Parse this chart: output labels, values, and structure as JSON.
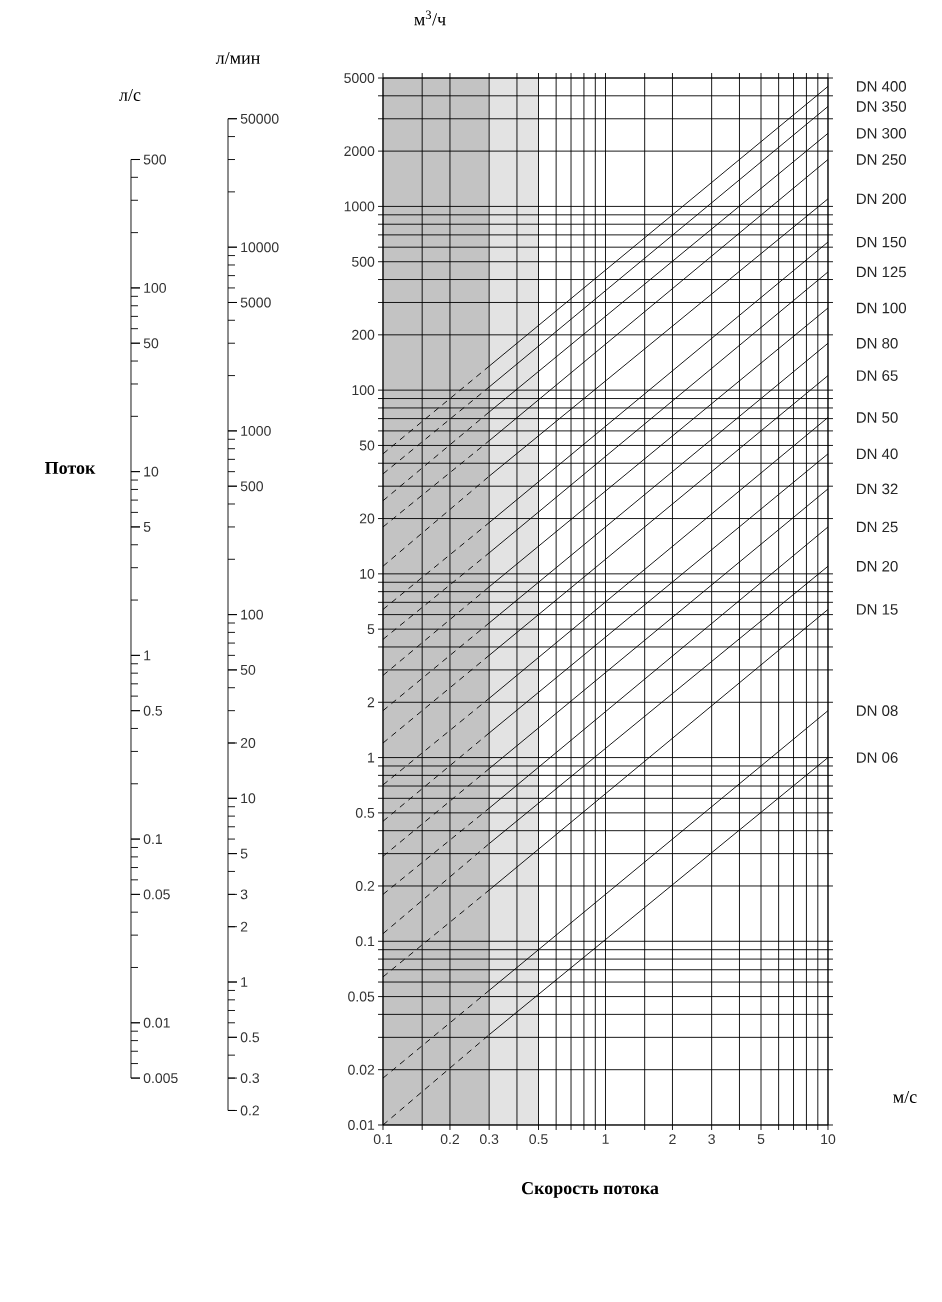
{
  "chart_data": [
    {
      "type": "other",
      "ylabel": "л/с",
      "annotations": [
        "0.005",
        "0.01",
        "0.05",
        "0.1",
        "0.5",
        "1",
        "5",
        "10",
        "50",
        "100",
        "500"
      ]
    },
    {
      "type": "other",
      "ylabel": "л/мин",
      "annotations": [
        "0.2",
        "0.3",
        "0.5",
        "1",
        "2",
        "3",
        "5",
        "10",
        "20",
        "50",
        "100",
        "500",
        "1000",
        "5000",
        "10000",
        "50000"
      ]
    },
    {
      "type": "line",
      "xlabel": "Скорость потока",
      "ylabel": "м$^{3}$/ч",
      "annotations": [
        "Поток",
        "м/с"
      ],
      "log": "xy",
      "grid": true,
      "legend": "right",
      "marker": "none",
      "xlim": [
        0.1,
        10
      ],
      "ylim": [
        0.01,
        5000
      ],
      "xticks": [
        0.1,
        {
          "value": 0.15,
          "label": null
        },
        0.2,
        0.3,
        {
          "value": 0.4,
          "label": null
        },
        0.5,
        {
          "value": 0.6,
          "label": null
        },
        {
          "value": 0.7,
          "label": null
        },
        {
          "value": 0.8,
          "label": null
        },
        {
          "value": 0.9,
          "label": null
        },
        1,
        {
          "value": 1.5,
          "label": null
        },
        2,
        3,
        {
          "value": 4,
          "label": null
        },
        5,
        {
          "value": 6,
          "label": null
        },
        {
          "value": 7,
          "label": null
        },
        {
          "value": 8,
          "label": null
        },
        {
          "value": 9,
          "label": null
        },
        10
      ],
      "yticks": [
        0.01,
        0.02,
        {
          "value": 0.03,
          "label": null
        },
        {
          "value": 0.04,
          "label": null
        },
        0.05,
        {
          "value": 0.06,
          "label": null
        },
        {
          "value": 0.07,
          "label": null
        },
        {
          "value": 0.08,
          "label": null
        },
        {
          "value": 0.09,
          "label": null
        },
        0.1,
        0.2,
        {
          "value": 0.3,
          "label": null
        },
        {
          "value": 0.4,
          "label": null
        },
        0.5,
        {
          "value": 0.6,
          "label": null
        },
        {
          "value": 0.7,
          "label": null
        },
        {
          "value": 0.8,
          "label": null
        },
        {
          "value": 0.9,
          "label": null
        },
        1,
        2,
        {
          "value": 3,
          "label": null
        },
        {
          "value": 4,
          "label": null
        },
        5,
        {
          "value": 6,
          "label": null
        },
        {
          "value": 7,
          "label": null
        },
        {
          "value": 8,
          "label": null
        },
        {
          "value": 9,
          "label": null
        },
        10,
        20,
        {
          "value": 30,
          "label": null
        },
        {
          "value": 40,
          "label": null
        },
        50,
        {
          "value": 60,
          "label": null
        },
        {
          "value": 70,
          "label": null
        },
        {
          "value": 80,
          "label": null
        },
        {
          "value": 90,
          "label": null
        },
        100,
        200,
        {
          "value": 300,
          "label": null
        },
        {
          "value": 400,
          "label": null
        },
        500,
        {
          "value": 600,
          "label": null
        },
        {
          "value": 700,
          "label": null
        },
        {
          "value": 800,
          "label": null
        },
        {
          "value": 900,
          "label": null
        },
        1000,
        2000,
        {
          "value": 3000,
          "label": null
        },
        {
          "value": 4000,
          "label": null
        },
        5000
      ],
      "bands": [
        {
          "axis": "x",
          "from": 0.1,
          "to": 0.3,
          "color": "#c3c3c3"
        },
        {
          "axis": "x",
          "from": 0.3,
          "to": 0.5,
          "color": "#e3e3e3"
        }
      ],
      "series": [
        {
          "name": "DN 400",
          "color": "#000000",
          "x": [
            0.3,
            10
          ],
          "values": [
            135,
            4500
          ]
        },
        {
          "color": "#000000",
          "line_style": "dashed",
          "x": [
            0.1,
            0.3
          ],
          "values": [
            45,
            135
          ]
        },
        {
          "name": "DN 350",
          "color": "#000000",
          "x": [
            0.3,
            10
          ],
          "values": [
            104,
            3500
          ]
        },
        {
          "color": "#000000",
          "line_style": "dashed",
          "x": [
            0.1,
            0.3
          ],
          "values": [
            35,
            104
          ]
        },
        {
          "name": "DN 300",
          "color": "#000000",
          "x": [
            0.3,
            10
          ],
          "values": [
            76,
            2500
          ]
        },
        {
          "color": "#000000",
          "line_style": "dashed",
          "x": [
            0.1,
            0.3
          ],
          "values": [
            25,
            76
          ]
        },
        {
          "name": "DN 250",
          "color": "#000000",
          "x": [
            0.3,
            10
          ],
          "values": [
            53,
            1800
          ]
        },
        {
          "color": "#000000",
          "line_style": "dashed",
          "x": [
            0.1,
            0.3
          ],
          "values": [
            18,
            53
          ]
        },
        {
          "name": "DN 200",
          "color": "#000000",
          "x": [
            0.3,
            10
          ],
          "values": [
            34,
            1100
          ]
        },
        {
          "color": "#000000",
          "line_style": "dashed",
          "x": [
            0.1,
            0.3
          ],
          "values": [
            11,
            34
          ]
        },
        {
          "name": "DN 150",
          "color": "#000000",
          "x": [
            0.3,
            10
          ],
          "values": [
            19,
            640
          ]
        },
        {
          "color": "#000000",
          "line_style": "dashed",
          "x": [
            0.1,
            0.3
          ],
          "values": [
            6.4,
            19
          ]
        },
        {
          "name": "DN 125",
          "color": "#000000",
          "x": [
            0.3,
            10
          ],
          "values": [
            13,
            440
          ]
        },
        {
          "color": "#000000",
          "line_style": "dashed",
          "x": [
            0.1,
            0.3
          ],
          "values": [
            4.4,
            13
          ]
        },
        {
          "name": "DN 100",
          "color": "#000000",
          "x": [
            0.3,
            10
          ],
          "values": [
            8.5,
            280
          ]
        },
        {
          "color": "#000000",
          "line_style": "dashed",
          "x": [
            0.1,
            0.3
          ],
          "values": [
            2.8,
            8.5
          ]
        },
        {
          "name": "DN 80",
          "color": "#000000",
          "x": [
            0.3,
            10
          ],
          "values": [
            5.4,
            180
          ]
        },
        {
          "color": "#000000",
          "line_style": "dashed",
          "x": [
            0.1,
            0.3
          ],
          "values": [
            1.8,
            5.4
          ]
        },
        {
          "name": "DN 65",
          "color": "#000000",
          "x": [
            0.3,
            10
          ],
          "values": [
            3.6,
            120
          ]
        },
        {
          "color": "#000000",
          "line_style": "dashed",
          "x": [
            0.1,
            0.3
          ],
          "values": [
            1.2,
            3.6
          ]
        },
        {
          "name": "DN 50",
          "color": "#000000",
          "x": [
            0.3,
            10
          ],
          "values": [
            2.1,
            71
          ]
        },
        {
          "color": "#000000",
          "line_style": "dashed",
          "x": [
            0.1,
            0.3
          ],
          "values": [
            0.71,
            2.1
          ]
        },
        {
          "name": "DN 40",
          "color": "#000000",
          "x": [
            0.3,
            10
          ],
          "values": [
            1.36,
            45
          ]
        },
        {
          "color": "#000000",
          "line_style": "dashed",
          "x": [
            0.1,
            0.3
          ],
          "values": [
            0.45,
            1.36
          ]
        },
        {
          "name": "DN 32",
          "color": "#000000",
          "x": [
            0.3,
            10
          ],
          "values": [
            0.87,
            29
          ]
        },
        {
          "color": "#000000",
          "line_style": "dashed",
          "x": [
            0.1,
            0.3
          ],
          "values": [
            0.29,
            0.87
          ]
        },
        {
          "name": "DN 25",
          "color": "#000000",
          "x": [
            0.3,
            10
          ],
          "values": [
            0.53,
            18
          ]
        },
        {
          "color": "#000000",
          "line_style": "dashed",
          "x": [
            0.1,
            0.3
          ],
          "values": [
            0.18,
            0.53
          ]
        },
        {
          "name": "DN 20",
          "color": "#000000",
          "x": [
            0.3,
            10
          ],
          "values": [
            0.34,
            11
          ]
        },
        {
          "color": "#000000",
          "line_style": "dashed",
          "x": [
            0.1,
            0.3
          ],
          "values": [
            0.11,
            0.34
          ]
        },
        {
          "name": "DN 15",
          "color": "#000000",
          "x": [
            0.3,
            10
          ],
          "values": [
            0.19,
            6.4
          ]
        },
        {
          "color": "#000000",
          "line_style": "dashed",
          "x": [
            0.1,
            0.3
          ],
          "values": [
            0.064,
            0.19
          ]
        },
        {
          "name": "DN 08",
          "color": "#000000",
          "x": [
            0.3,
            10
          ],
          "values": [
            0.054,
            1.8
          ]
        },
        {
          "color": "#000000",
          "line_style": "dashed",
          "x": [
            0.1,
            0.3
          ],
          "values": [
            0.018,
            0.054
          ]
        },
        {
          "name": "DN 06",
          "color": "#000000",
          "x": [
            0.3,
            10
          ],
          "values": [
            0.031,
            1.0
          ]
        },
        {
          "color": "#000000",
          "line_style": "dashed",
          "x": [
            0.1,
            0.3
          ],
          "values": [
            0.01,
            0.031
          ]
        }
      ]
    }
  ]
}
